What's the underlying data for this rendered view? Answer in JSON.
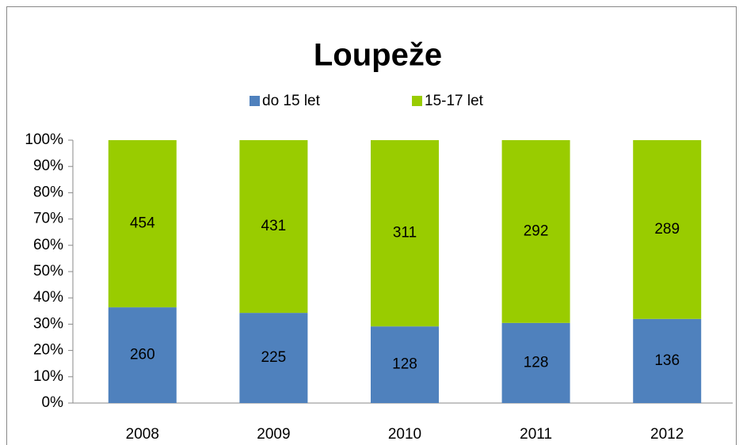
{
  "chart_data": {
    "type": "stacked100",
    "title": "Loupeže",
    "categories": [
      "2008",
      "2009",
      "2010",
      "2011",
      "2012"
    ],
    "series": [
      {
        "name": "do 15 let",
        "color": "#4f81bd",
        "values": [
          260,
          225,
          128,
          128,
          136
        ]
      },
      {
        "name": "15-17 let",
        "color": "#99cc00",
        "values": [
          454,
          431,
          311,
          292,
          289
        ]
      }
    ],
    "ylim": [
      0,
      100
    ],
    "yticks": [
      {
        "value": 0,
        "label": "0%"
      },
      {
        "value": 10,
        "label": "10%"
      },
      {
        "value": 20,
        "label": "20%"
      },
      {
        "value": 30,
        "label": "30%"
      },
      {
        "value": 40,
        "label": "40%"
      },
      {
        "value": 50,
        "label": "50%"
      },
      {
        "value": 60,
        "label": "60%"
      },
      {
        "value": 70,
        "label": "70%"
      },
      {
        "value": 80,
        "label": "80%"
      },
      {
        "value": 90,
        "label": "90%"
      },
      {
        "value": 100,
        "label": "100%"
      }
    ],
    "legend": "top",
    "grid": false
  }
}
